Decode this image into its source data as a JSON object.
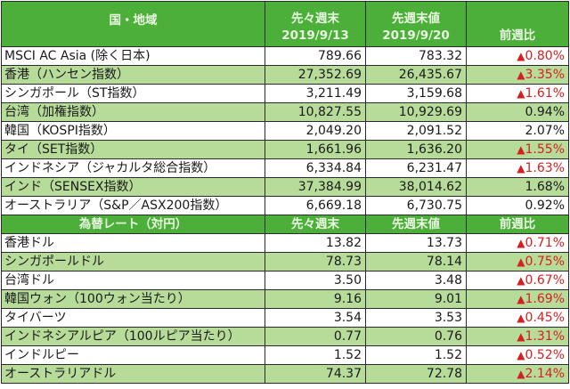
{
  "indices": {
    "header": {
      "region": "国・地域",
      "prev2": [
        "先々週末",
        "2019/9/13"
      ],
      "prev1": [
        "先週末値",
        "2019/9/20"
      ],
      "change": "前週比"
    },
    "rows": [
      {
        "name": "MSCI AC Asia (除く日本)",
        "prev2": "789.66",
        "prev1": "783.32",
        "change": "0.80%",
        "negative": true
      },
      {
        "name": "香港（ハンセン指数）",
        "prev2": "27,352.69",
        "prev1": "26,435.67",
        "change": "3.35%",
        "negative": true
      },
      {
        "name": "シンガポール（ST指数）",
        "prev2": "3,211.49",
        "prev1": "3,159.68",
        "change": "1.61%",
        "negative": true
      },
      {
        "name": "台湾（加権指数）",
        "prev2": "10,827.55",
        "prev1": "10,929.69",
        "change": "0.94%",
        "negative": false
      },
      {
        "name": "韓国（KOSPI指数）",
        "prev2": "2,049.20",
        "prev1": "2,091.52",
        "change": "2.07%",
        "negative": false
      },
      {
        "name": "タイ（SET指数）",
        "prev2": "1,661.96",
        "prev1": "1,636.20",
        "change": "1.55%",
        "negative": true
      },
      {
        "name": "インドネシア（ジャカルタ総合指数）",
        "prev2": "6,334.84",
        "prev1": "6,231.47",
        "change": "1.63%",
        "negative": true
      },
      {
        "name": "インド（SENSEX指数）",
        "prev2": "37,384.99",
        "prev1": "38,014.62",
        "change": "1.68%",
        "negative": false
      },
      {
        "name": "オーストラリア（S&P／ASX200指数）",
        "prev2": "6,669.18",
        "prev1": "6,730.75",
        "change": "0.92%",
        "negative": false
      }
    ]
  },
  "fx": {
    "header": {
      "region": "為替レート（対円）",
      "prev2": "先々週末",
      "prev1": "先週末値",
      "change": "前週比"
    },
    "rows": [
      {
        "name": "香港ドル",
        "prev2": "13.82",
        "prev1": "13.73",
        "change": "0.71%",
        "negative": true
      },
      {
        "name": "シンガポールドル",
        "prev2": "78.73",
        "prev1": "78.14",
        "change": "0.75%",
        "negative": true
      },
      {
        "name": "台湾ドル",
        "prev2": "3.50",
        "prev1": "3.48",
        "change": "0.67%",
        "negative": true
      },
      {
        "name": "韓国ウォン（100ウォン当たり）",
        "prev2": "9.16",
        "prev1": "9.01",
        "change": "1.69%",
        "negative": true
      },
      {
        "name": "タイバーツ",
        "prev2": "3.54",
        "prev1": "3.53",
        "change": "0.45%",
        "negative": true
      },
      {
        "name": "インドネシアルピア（100ルピア当たり）",
        "prev2": "0.77",
        "prev1": "0.76",
        "change": "1.31%",
        "negative": true
      },
      {
        "name": "インドルピー",
        "prev2": "1.52",
        "prev1": "1.52",
        "change": "0.52%",
        "negative": true
      },
      {
        "name": "オーストラリアドル",
        "prev2": "74.37",
        "prev1": "72.78",
        "change": "2.14%",
        "negative": true
      }
    ]
  },
  "symbols": {
    "negative_marker": "▲"
  },
  "colors": {
    "header_bg": "#4caf3a",
    "header_text": "#eaf7e2",
    "alt_row_bg": "#b7dc9a",
    "negative_text": "#d42020"
  }
}
